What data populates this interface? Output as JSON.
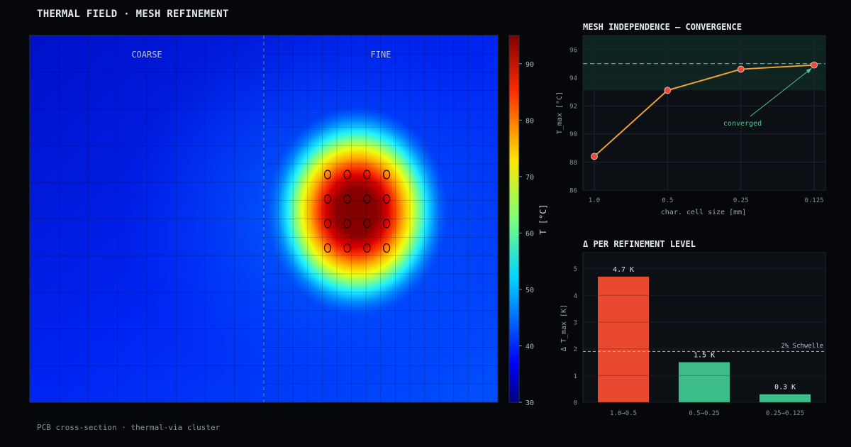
{
  "title": "THERMAL FIELD · MESH REFINEMENT",
  "footer": "PCB cross-section · thermal-via cluster",
  "colors": {
    "background": "#05070a",
    "panel": "#0c1015",
    "line": "#f0a13a",
    "point": "#e84c3d",
    "converged_band": "#10201f",
    "target_line": "#4fa58f",
    "bar_red": "#e8492f",
    "bar_green": "#3dbd8a"
  },
  "heatmap": {
    "region_labels": [
      "COARSE",
      "FINE"
    ],
    "colorbar_label": "T [°C]",
    "colorbar_ticks": [
      "30",
      "40",
      "50",
      "60",
      "70",
      "80",
      "90"
    ],
    "colormap": "jet",
    "range": [
      30,
      95
    ],
    "via_grid": {
      "rows": 4,
      "cols": 4
    }
  },
  "chart_data": [
    {
      "type": "line",
      "title": "MESH INDEPENDENCE — CONVERGENCE",
      "xlabel": "char. cell size [mm]",
      "ylabel": "T_max [°C]",
      "x": [
        1.0,
        0.5,
        0.25,
        0.125
      ],
      "x_tick_labels": [
        "1.0",
        "0.5",
        "0.25",
        "0.125"
      ],
      "x_scale": "log (decreasing)",
      "y": [
        88.4,
        93.1,
        94.6,
        94.9
      ],
      "ylim": [
        86,
        97
      ],
      "y_ticks": [
        86,
        88,
        90,
        92,
        94,
        96
      ],
      "reference_line": 95.0,
      "converged_band": [
        93.1,
        97
      ],
      "annotation": "converged",
      "grid": true
    },
    {
      "type": "bar",
      "title": "Δ PER REFINEMENT LEVEL",
      "categories": [
        "1.0→0.5",
        "0.5→0.25",
        "0.25→0.125"
      ],
      "values": [
        4.7,
        1.5,
        0.3
      ],
      "value_labels": [
        "4.7 K",
        "1.5 K",
        "0.3 K"
      ],
      "ylabel": "Δ T_max [K]",
      "ylim": [
        0,
        5.6
      ],
      "y_ticks": [
        0,
        1,
        2,
        3,
        4,
        5
      ],
      "threshold": 1.9,
      "threshold_label": "2% Schwelle",
      "grid": true
    }
  ]
}
